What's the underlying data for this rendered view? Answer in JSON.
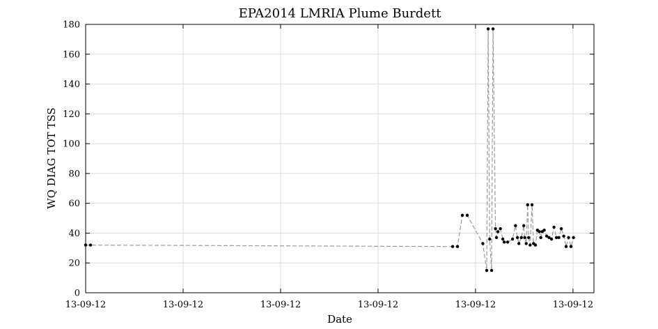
{
  "chart_data": {
    "type": "line",
    "title": "EPA2014 LMRIA Plume Burdett",
    "xlabel": "Date",
    "ylabel": "WQ DIAG TOT TSS",
    "x_tick_labels": [
      "13-09-12",
      "13-09-12",
      "13-09-12",
      "13-09-12",
      "13-09-12",
      "13-09-12"
    ],
    "x_tick_values": [
      0,
      20,
      40,
      60,
      80,
      100
    ],
    "y_tick_labels": [
      "0",
      "20",
      "40",
      "60",
      "80",
      "100",
      "120",
      "140",
      "160",
      "180"
    ],
    "y_tick_values": [
      0,
      20,
      40,
      60,
      80,
      100,
      120,
      140,
      160,
      180
    ],
    "xlim": [
      0,
      104.3
    ],
    "ylim": [
      0,
      180
    ],
    "grid": true,
    "line_color": "#9a9a9a",
    "marker_color": "#000000",
    "series": [
      {
        "x": [
          0,
          1,
          75.3,
          76.3,
          77.3,
          78.3,
          81.5,
          82.3,
          82.6,
          82.9,
          83.3,
          83.6,
          84.1,
          84.3,
          84.6,
          85.1,
          85.6,
          85.9,
          86.6,
          87.6,
          88.2,
          88.6,
          88.9,
          89.4,
          89.9,
          90.1,
          90.4,
          90.7,
          90.9,
          91.2,
          91.6,
          91.9,
          92.3,
          92.7,
          93.1,
          93.4,
          93.7,
          94.1,
          94.6,
          95.1,
          95.6,
          96.1,
          96.6,
          97.1,
          97.6,
          98.1,
          98.6,
          99.1,
          99.6,
          100.1
        ],
        "y": [
          32,
          32,
          31,
          31,
          52,
          52,
          33,
          15,
          177,
          36,
          15,
          177,
          43,
          37,
          41,
          43,
          36,
          34,
          34,
          36,
          45,
          37,
          33,
          37,
          45,
          37,
          33,
          59,
          37,
          32,
          59,
          33,
          32,
          42,
          41,
          37,
          41,
          42,
          38,
          37,
          36,
          44,
          37,
          37,
          43,
          38,
          31,
          37,
          31,
          37
        ]
      }
    ]
  }
}
